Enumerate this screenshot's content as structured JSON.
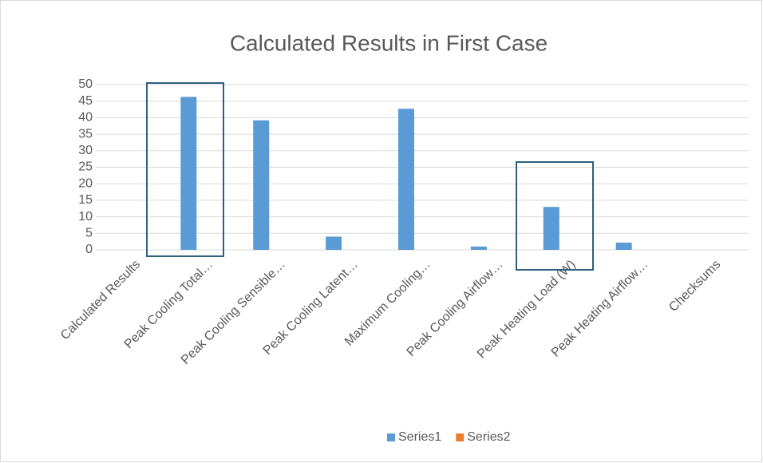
{
  "chart_data": {
    "type": "bar",
    "title": "Calculated Results in First Case",
    "categories": [
      "Calculated Results",
      "Peak Cooling Total…",
      "Peak Cooling Sensible…",
      "Peak Cooling Latent…",
      "Maximum Cooling…",
      "Peak Cooling Airflow…",
      "Peak Heating Load (W)",
      "Peak Heating Airflow…",
      "Checksums"
    ],
    "series": [
      {
        "name": "Series1",
        "color": "#5b9bd5",
        "values": [
          null,
          46.3,
          39.2,
          4,
          42.7,
          1,
          13,
          2.2,
          null
        ]
      },
      {
        "name": "Series2",
        "color": "#ed7d31",
        "values": [
          null,
          null,
          null,
          null,
          null,
          null,
          null,
          null,
          null
        ]
      }
    ],
    "ylim": [
      0,
      50
    ],
    "yticks": [
      0,
      5,
      10,
      15,
      20,
      25,
      30,
      35,
      40,
      45,
      50
    ],
    "grid": true,
    "legend": "bottom"
  }
}
